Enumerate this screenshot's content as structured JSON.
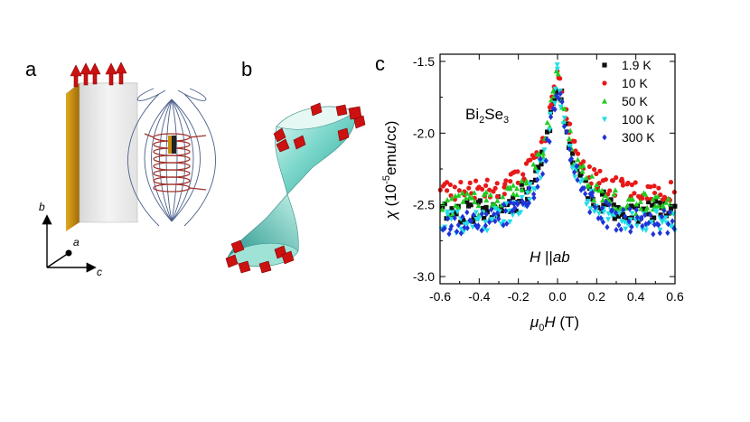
{
  "panels": {
    "a": {
      "label": "a",
      "axes": {
        "b": "b",
        "a": "a",
        "c": "c"
      }
    },
    "b": {
      "label": "b"
    },
    "c": {
      "label": "c"
    }
  },
  "colors": {
    "spin_arrow": "#cc1111",
    "slab_edge": "#c8900a",
    "slab_face": "#e9e9e9",
    "surface": "#7fd8cc",
    "coil": "#a0302a",
    "field_line": "#4a5f8a"
  },
  "chart_data": {
    "type": "scatter",
    "title": "",
    "xlabel_parts": [
      "μ",
      "0",
      "H",
      " (T)"
    ],
    "ylabel_parts": [
      "χ",
      " (10",
      "-5",
      "emu/cc)"
    ],
    "xlim": [
      -0.6,
      0.6
    ],
    "ylim": [
      -3.05,
      -1.45
    ],
    "xticks": [
      -0.6,
      -0.4,
      -0.2,
      0.0,
      0.2,
      0.4,
      0.6
    ],
    "xtick_labels": [
      "-0.6",
      "-0.4",
      "-0.2",
      "0.0",
      "0.2",
      "0.4",
      "0.6"
    ],
    "yticks": [
      -3.0,
      -2.5,
      -2.0,
      -1.5
    ],
    "ytick_labels": [
      "-3.0",
      "-2.5",
      "-2.0",
      "-1.5"
    ],
    "annotation_sample": [
      "Bi",
      "2",
      "Se",
      "3"
    ],
    "annotation_field": [
      "H",
      " ||",
      "ab"
    ],
    "legend_position": "top-right",
    "series": [
      {
        "name": "1.9 K",
        "color": "#111111",
        "marker": "square",
        "baseline": -2.55,
        "peak": 1.0,
        "noise": 0.08,
        "seed": 11
      },
      {
        "name": "10 K",
        "color": "#e81818",
        "marker": "circle",
        "baseline": -2.4,
        "peak": 0.85,
        "noise": 0.07,
        "seed": 23
      },
      {
        "name": "50 K",
        "color": "#22cc22",
        "marker": "triangle-up",
        "baseline": -2.5,
        "peak": 0.95,
        "noise": 0.08,
        "seed": 37
      },
      {
        "name": "100 K",
        "color": "#22dde8",
        "marker": "triangle-down",
        "baseline": -2.62,
        "peak": 1.05,
        "noise": 0.08,
        "seed": 41
      },
      {
        "name": "300 K",
        "color": "#1f33d8",
        "marker": "diamond",
        "baseline": -2.62,
        "peak": 1.0,
        "noise": 0.09,
        "seed": 53
      }
    ],
    "x_samples": [
      -0.6,
      -0.58,
      -0.56,
      -0.54,
      -0.52,
      -0.5,
      -0.48,
      -0.46,
      -0.44,
      -0.42,
      -0.4,
      -0.38,
      -0.36,
      -0.34,
      -0.32,
      -0.3,
      -0.28,
      -0.26,
      -0.24,
      -0.22,
      -0.2,
      -0.18,
      -0.16,
      -0.14,
      -0.12,
      -0.1,
      -0.08,
      -0.06,
      -0.04,
      -0.02,
      0.0,
      0.02,
      0.04,
      0.06,
      0.08,
      0.1,
      0.12,
      0.14,
      0.16,
      0.18,
      0.2,
      0.22,
      0.24,
      0.26,
      0.28,
      0.3,
      0.32,
      0.34,
      0.36,
      0.38,
      0.4,
      0.42,
      0.44,
      0.46,
      0.48,
      0.5,
      0.52,
      0.54,
      0.56,
      0.58,
      0.6
    ]
  }
}
